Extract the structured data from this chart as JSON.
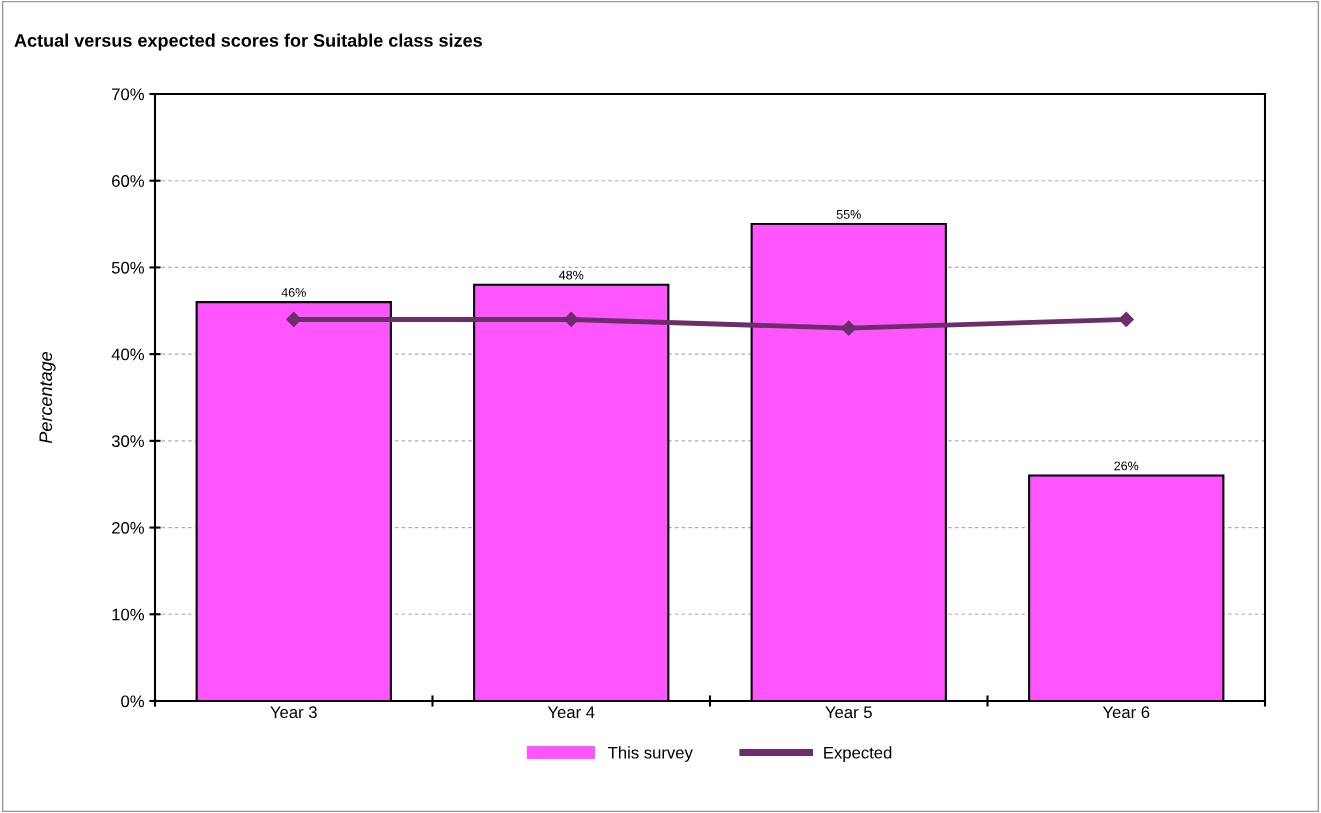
{
  "chart_data": {
    "type": "bar",
    "title": "Actual versus expected scores for Suitable class sizes",
    "ylabel": "Percentage",
    "categories": [
      "Year 3",
      "Year 4",
      "Year 5",
      "Year 6"
    ],
    "series": [
      {
        "name": "This survey",
        "color": "#ff55ff",
        "values": [
          46,
          48,
          55,
          26
        ],
        "value_labels": [
          "46%",
          "48%",
          "55%",
          "26%"
        ]
      },
      {
        "name": "Expected",
        "type": "line",
        "color": "#6b2e6b",
        "values": [
          44,
          44,
          43,
          44
        ],
        "marker": "diamond"
      }
    ],
    "ylim": [
      0,
      70
    ],
    "yticks": [
      {
        "value": 0,
        "label": "0%"
      },
      {
        "value": 10,
        "label": "10%"
      },
      {
        "value": 20,
        "label": "20%"
      },
      {
        "value": 30,
        "label": "30%"
      },
      {
        "value": 40,
        "label": "40%"
      },
      {
        "value": 50,
        "label": "50%"
      },
      {
        "value": 60,
        "label": "60%"
      },
      {
        "value": 70,
        "label": "70%"
      }
    ],
    "grid": "y",
    "legend": "bottom"
  }
}
